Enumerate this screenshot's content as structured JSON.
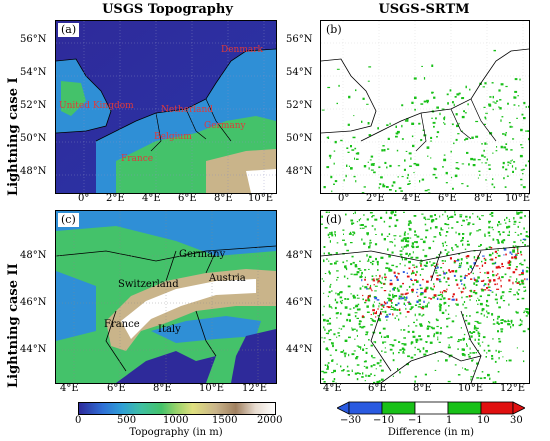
{
  "columns": {
    "left": "USGS Topography",
    "right": "USGS-SRTM"
  },
  "rows": {
    "top": "Lightning case I",
    "bottom": "Lightning case II"
  },
  "panels": {
    "a": {
      "label": "(a)",
      "lat_ticks": [
        "56°N",
        "54°N",
        "52°N",
        "50°N",
        "48°N"
      ],
      "lon_ticks": [
        "0°",
        "2°E",
        "4°E",
        "6°E",
        "8°E",
        "10°E"
      ],
      "countries": [
        "Denmark",
        "United Kingdom",
        "Netherland",
        "Belgium",
        "Germany",
        "France"
      ]
    },
    "b": {
      "label": "(b)",
      "lat_ticks": [
        "56°N",
        "54°N",
        "52°N",
        "50°N",
        "48°N"
      ],
      "lon_ticks": [
        "0°",
        "2°E",
        "4°E",
        "6°E",
        "8°E",
        "10°E"
      ]
    },
    "c": {
      "label": "(c)",
      "lat_ticks": [
        "48°N",
        "46°N",
        "44°N"
      ],
      "lon_ticks": [
        "4°E",
        "6°E",
        "8°E",
        "10°E",
        "12°E"
      ],
      "countries": [
        "Germany",
        "Austria",
        "Switzerland",
        "France",
        "Italy"
      ]
    },
    "d": {
      "label": "(d)",
      "lat_ticks": [
        "48°N",
        "46°N",
        "44°N"
      ],
      "lon_ticks": [
        "4°E",
        "6°E",
        "8°E",
        "10°E",
        "12°E"
      ]
    }
  },
  "colorbars": {
    "topography": {
      "ticks": [
        "0",
        "500",
        "1000",
        "1500",
        "2000"
      ],
      "label": "Topography (in m)"
    },
    "difference": {
      "ticks": [
        "−30",
        "−10",
        "−1",
        "1",
        "10",
        "30"
      ],
      "label": "Difference (in m)"
    }
  },
  "colors": {
    "sea": "#2e2a9a",
    "lowland": "#2f8fd6",
    "hill": "#44c26a",
    "highland": "#c9b48a",
    "peak": "#ffffff",
    "diff_green": "#18c018",
    "diff_red": "#e01010",
    "diff_blue": "#2a5ae0"
  }
}
